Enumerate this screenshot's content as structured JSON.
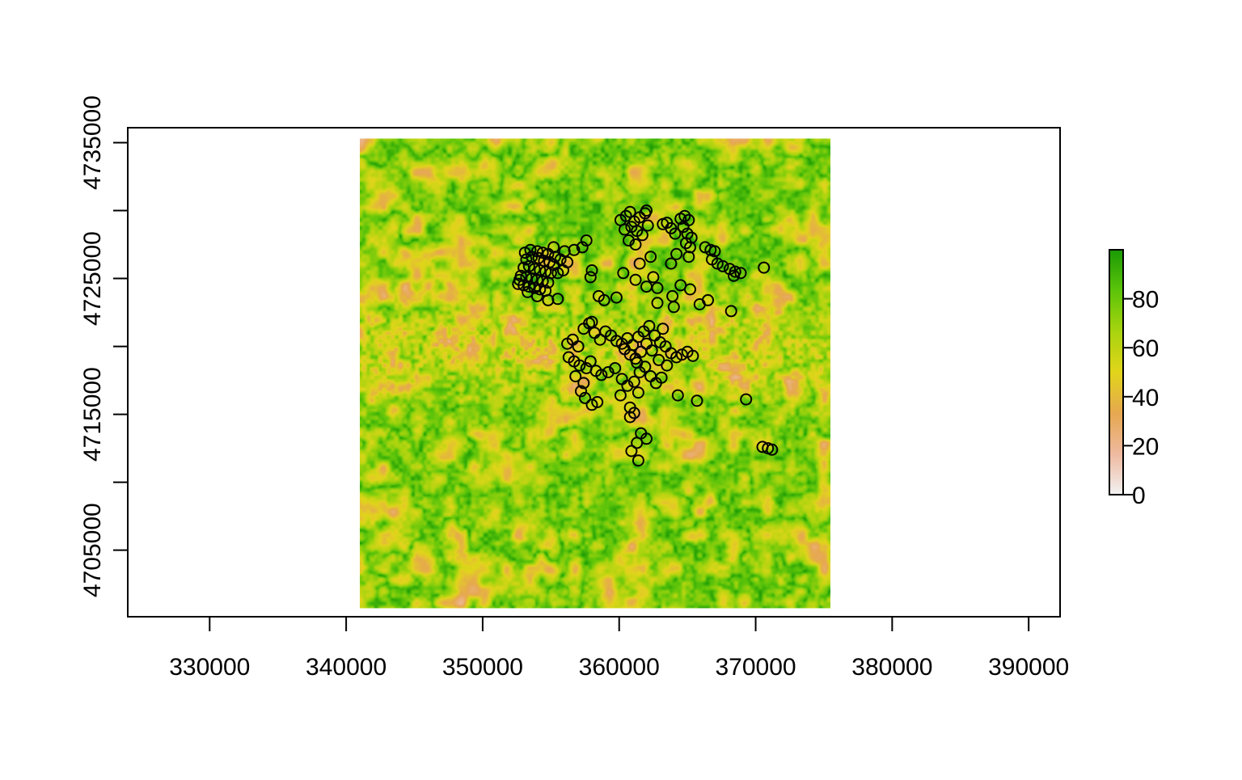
{
  "chart_data": {
    "type": "heatmap",
    "title": "",
    "xlabel": "",
    "ylabel": "",
    "xlim": [
      324000,
      392300
    ],
    "ylim": [
      4700100,
      4736100
    ],
    "raster_extent": {
      "x": [
        341000,
        375500
      ],
      "y": [
        4700700,
        4735300
      ]
    },
    "x_ticks": [
      330000,
      340000,
      350000,
      360000,
      370000,
      380000,
      390000
    ],
    "x_tick_labels": [
      "330000",
      "340000",
      "350000",
      "360000",
      "370000",
      "380000",
      "390000"
    ],
    "y_ticks": [
      4705000,
      4710000,
      4715000,
      4720000,
      4725000,
      4730000,
      4735000
    ],
    "y_tick_labels": [
      "4705000",
      "4715000",
      "4725000",
      "4735000"
    ],
    "y_tick_labels_at": [
      4705000,
      4715000,
      4725000,
      4735000
    ],
    "legend": {
      "placement": "right",
      "range": [
        0,
        100
      ],
      "ticks": [
        0,
        20,
        40,
        60,
        80
      ],
      "tick_labels": [
        "0",
        "20",
        "40",
        "60",
        "80"
      ],
      "colors": [
        "#f2f2f2",
        "#eeb99f",
        "#e6a84f",
        "#e1d51b",
        "#a8d40e",
        "#5cc40a",
        "#1a9a05"
      ]
    },
    "grid": false,
    "points": [
      [
        353200,
        4726400
      ],
      [
        353600,
        4726600
      ],
      [
        354100,
        4726500
      ],
      [
        354500,
        4726300
      ],
      [
        354900,
        4726200
      ],
      [
        355200,
        4726000
      ],
      [
        353000,
        4725800
      ],
      [
        353400,
        4725900
      ],
      [
        353800,
        4725700
      ],
      [
        354200,
        4725600
      ],
      [
        354600,
        4725500
      ],
      [
        355000,
        4725400
      ],
      [
        352800,
        4725200
      ],
      [
        353200,
        4725100
      ],
      [
        353600,
        4725000
      ],
      [
        354000,
        4724900
      ],
      [
        354400,
        4724800
      ],
      [
        354800,
        4724700
      ],
      [
        352600,
        4724600
      ],
      [
        353000,
        4724500
      ],
      [
        353400,
        4724400
      ],
      [
        353800,
        4724300
      ],
      [
        354200,
        4724200
      ],
      [
        354600,
        4724100
      ],
      [
        353100,
        4726900
      ],
      [
        353500,
        4727100
      ],
      [
        354000,
        4727000
      ],
      [
        354400,
        4726900
      ],
      [
        354800,
        4726800
      ],
      [
        355300,
        4726600
      ],
      [
        355700,
        4726400
      ],
      [
        356200,
        4726200
      ],
      [
        355500,
        4725400
      ],
      [
        355900,
        4725600
      ],
      [
        352700,
        4724900
      ],
      [
        353300,
        4724000
      ],
      [
        354000,
        4723700
      ],
      [
        354800,
        4723400
      ],
      [
        355500,
        4723500
      ],
      [
        355200,
        4727300
      ],
      [
        356000,
        4727000
      ],
      [
        356700,
        4727100
      ],
      [
        357300,
        4727300
      ],
      [
        357600,
        4727800
      ],
      [
        358000,
        4725600
      ],
      [
        360100,
        4729300
      ],
      [
        360500,
        4729600
      ],
      [
        360800,
        4729900
      ],
      [
        361100,
        4729200
      ],
      [
        361500,
        4729500
      ],
      [
        361900,
        4729800
      ],
      [
        362000,
        4730000
      ],
      [
        360400,
        4728600
      ],
      [
        360900,
        4728800
      ],
      [
        361300,
        4728500
      ],
      [
        361700,
        4728200
      ],
      [
        362100,
        4728900
      ],
      [
        360700,
        4727800
      ],
      [
        361200,
        4727500
      ],
      [
        363200,
        4729000
      ],
      [
        363500,
        4729100
      ],
      [
        363800,
        4728700
      ],
      [
        364100,
        4728300
      ],
      [
        364500,
        4729400
      ],
      [
        364800,
        4729600
      ],
      [
        365100,
        4729300
      ],
      [
        364700,
        4728800
      ],
      [
        365000,
        4728300
      ],
      [
        365300,
        4728000
      ],
      [
        364900,
        4727600
      ],
      [
        365200,
        4727300
      ],
      [
        364200,
        4726800
      ],
      [
        363800,
        4726100
      ],
      [
        365100,
        4726600
      ],
      [
        366300,
        4727300
      ],
      [
        366700,
        4727100
      ],
      [
        367000,
        4727000
      ],
      [
        366800,
        4726400
      ],
      [
        367200,
        4726100
      ],
      [
        367600,
        4725900
      ],
      [
        368100,
        4725700
      ],
      [
        368500,
        4725500
      ],
      [
        368900,
        4725400
      ],
      [
        368400,
        4725200
      ],
      [
        370600,
        4725800
      ],
      [
        357900,
        4725100
      ],
      [
        358500,
        4723700
      ],
      [
        358900,
        4723400
      ],
      [
        359800,
        4723600
      ],
      [
        360300,
        4725400
      ],
      [
        361200,
        4724900
      ],
      [
        362000,
        4724400
      ],
      [
        362500,
        4725100
      ],
      [
        362800,
        4724300
      ],
      [
        363900,
        4723700
      ],
      [
        364500,
        4724500
      ],
      [
        365200,
        4724200
      ],
      [
        366500,
        4723400
      ],
      [
        365900,
        4723100
      ],
      [
        368200,
        4722600
      ],
      [
        361500,
        4726100
      ],
      [
        362300,
        4726600
      ],
      [
        362800,
        4723200
      ],
      [
        364000,
        4722900
      ],
      [
        357400,
        4721300
      ],
      [
        357800,
        4721700
      ],
      [
        358200,
        4721000
      ],
      [
        358600,
        4720500
      ],
      [
        359000,
        4721100
      ],
      [
        359400,
        4720800
      ],
      [
        359800,
        4720400
      ],
      [
        360200,
        4720200
      ],
      [
        360600,
        4720600
      ],
      [
        361000,
        4720100
      ],
      [
        361400,
        4720700
      ],
      [
        361800,
        4721100
      ],
      [
        362200,
        4721500
      ],
      [
        362600,
        4720800
      ],
      [
        363000,
        4720300
      ],
      [
        363400,
        4720000
      ],
      [
        363800,
        4719500
      ],
      [
        364200,
        4719200
      ],
      [
        364600,
        4719400
      ],
      [
        365000,
        4719600
      ],
      [
        365400,
        4719300
      ],
      [
        363200,
        4721300
      ],
      [
        362000,
        4720200
      ],
      [
        361600,
        4719600
      ],
      [
        361200,
        4719100
      ],
      [
        360800,
        4719400
      ],
      [
        360400,
        4719800
      ],
      [
        362400,
        4719700
      ],
      [
        362900,
        4719000
      ],
      [
        363500,
        4718600
      ],
      [
        358000,
        4721800
      ],
      [
        356200,
        4720200
      ],
      [
        356600,
        4720500
      ],
      [
        357000,
        4720000
      ],
      [
        356300,
        4719200
      ],
      [
        356700,
        4718900
      ],
      [
        357100,
        4718600
      ],
      [
        357600,
        4718400
      ],
      [
        357900,
        4718900
      ],
      [
        358300,
        4718200
      ],
      [
        358700,
        4717900
      ],
      [
        359200,
        4718100
      ],
      [
        359700,
        4718400
      ],
      [
        360200,
        4717600
      ],
      [
        360600,
        4717100
      ],
      [
        361100,
        4717400
      ],
      [
        361500,
        4718100
      ],
      [
        361900,
        4718500
      ],
      [
        362300,
        4717800
      ],
      [
        362700,
        4717300
      ],
      [
        363100,
        4717700
      ],
      [
        361300,
        4718800
      ],
      [
        357200,
        4716700
      ],
      [
        357500,
        4716200
      ],
      [
        358000,
        4715700
      ],
      [
        358400,
        4715900
      ],
      [
        357400,
        4717300
      ],
      [
        356800,
        4717800
      ],
      [
        360100,
        4716400
      ],
      [
        360800,
        4715500
      ],
      [
        361100,
        4715100
      ],
      [
        360800,
        4714800
      ],
      [
        361400,
        4716600
      ],
      [
        364300,
        4716400
      ],
      [
        365700,
        4716000
      ],
      [
        369300,
        4716100
      ],
      [
        361600,
        4713600
      ],
      [
        362000,
        4713200
      ],
      [
        361300,
        4712900
      ],
      [
        360900,
        4712300
      ],
      [
        361400,
        4711600
      ],
      [
        370500,
        4712600
      ],
      [
        370900,
        4712500
      ],
      [
        371200,
        4712400
      ]
    ]
  }
}
